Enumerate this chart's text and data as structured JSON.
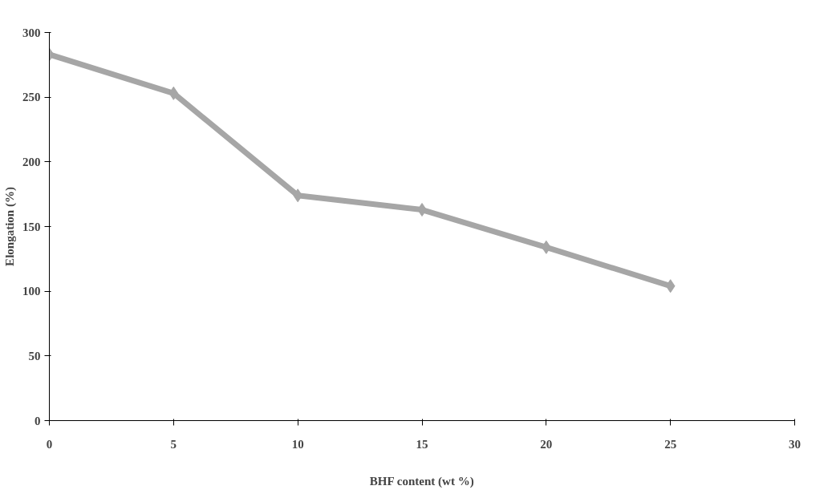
{
  "chart_data": {
    "type": "line",
    "xlabel": "BHF content (wt %)",
    "ylabel": "Elongation (%)",
    "x": [
      0,
      5,
      10,
      15,
      20,
      25
    ],
    "series": [
      {
        "color": "#a6a6a6",
        "values": [
          283,
          253,
          174,
          163,
          134,
          104
        ]
      }
    ],
    "xlim": [
      0,
      30
    ],
    "xticks": [
      0,
      5,
      10,
      15,
      20,
      25,
      30
    ],
    "ylim": [
      0,
      300
    ],
    "yticks": [
      0,
      50,
      100,
      150,
      200,
      250,
      300
    ],
    "marker": "diamond",
    "line_style": "solid",
    "grid": false
  }
}
